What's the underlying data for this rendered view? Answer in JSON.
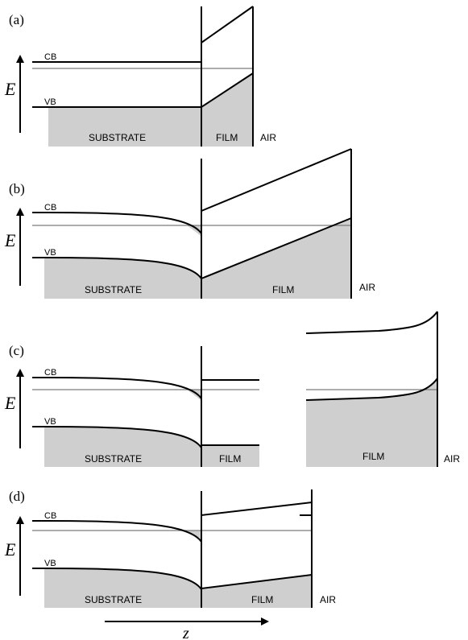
{
  "labels": {
    "cb": "CB",
    "vb": "VB",
    "energy": "E",
    "position": "z",
    "substrate": "SUBSTRATE",
    "film": "FILM",
    "air": "AIR"
  },
  "panels": [
    {
      "id": "a",
      "label": "(a)"
    },
    {
      "id": "b",
      "label": "(b)"
    },
    {
      "id": "c",
      "label": "(c)"
    },
    {
      "id": "d",
      "label": "(d)"
    }
  ]
}
